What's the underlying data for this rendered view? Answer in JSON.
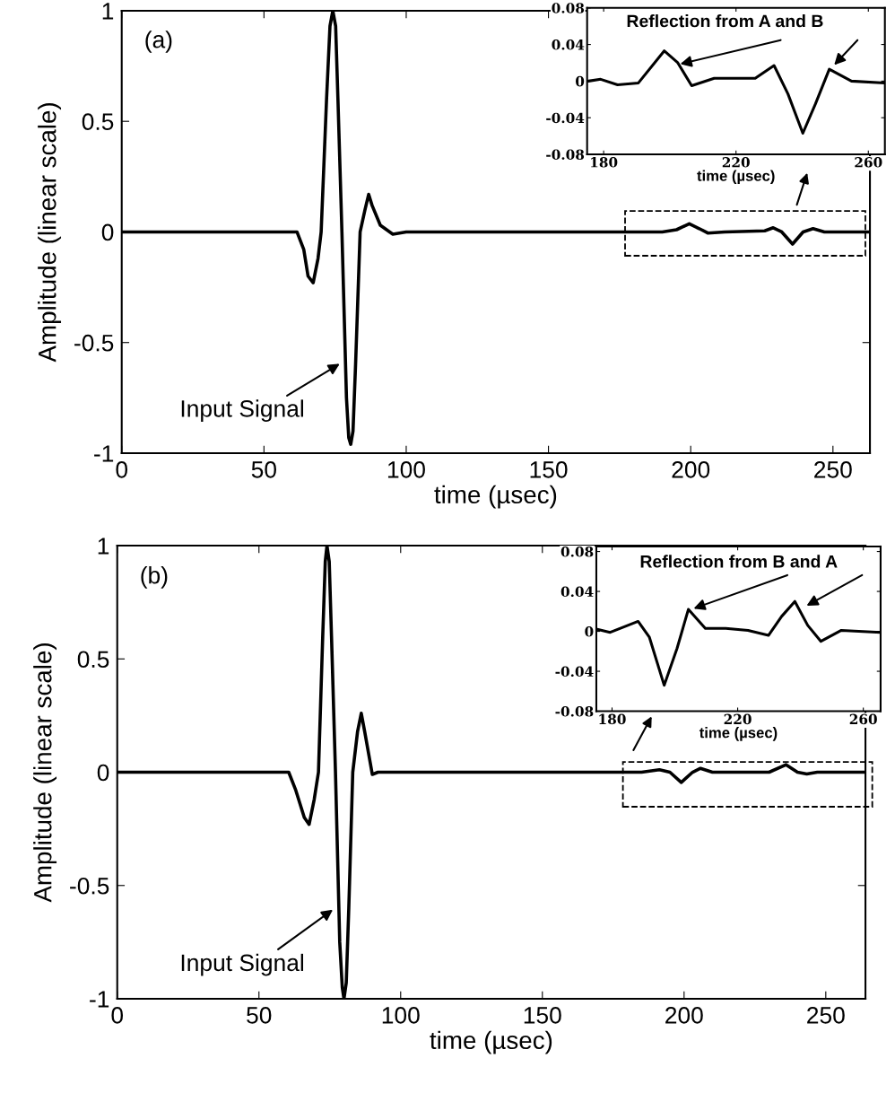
{
  "chart_data": [
    {
      "type": "line",
      "xlabel": "time (µsec)",
      "ylabel": "Amplitude (linear scale)",
      "xlim": [
        0,
        263
      ],
      "ylim": [
        -1,
        1
      ],
      "xticks": [
        0,
        50,
        100,
        150,
        200,
        250
      ],
      "yticks": [
        -1,
        -0.5,
        0,
        0.5,
        1
      ],
      "annotations": [
        "(a)",
        {
          "text": "Input Signal",
          "x": 77.4,
          "y": -0.59
        }
      ],
      "series": [
        {
          "color": "#000000",
          "x": [
            0,
            61.6,
            64,
            65.5,
            67.3,
            69,
            70.1,
            72,
            73.2,
            74.2,
            75.2,
            76,
            77.4,
            79,
            79.8,
            80.5,
            81.3,
            82.2,
            83.8,
            85.5,
            86.8,
            88,
            90.9,
            95.3,
            100,
            150,
            190,
            195,
            199.5,
            203,
            206,
            212,
            226,
            229,
            232,
            235.8,
            239.5,
            243,
            247,
            263
          ],
          "values": [
            0,
            0,
            -0.08,
            -0.2,
            -0.23,
            -0.12,
            0,
            0.6,
            0.93,
            1.0,
            0.93,
            0.6,
            0,
            -0.75,
            -0.93,
            -0.96,
            -0.9,
            -0.6,
            0,
            0.1,
            0.17,
            0.12,
            0.03,
            -0.01,
            0,
            0,
            0,
            0.01,
            0.037,
            0.015,
            -0.005,
            0,
            0.005,
            0.019,
            0,
            -0.055,
            0,
            0.015,
            0,
            0
          ]
        }
      ]
    },
    {
      "type": "line",
      "xlabel": "time (µsec)",
      "xlim": [
        175,
        265
      ],
      "ylim": [
        -0.08,
        0.08
      ],
      "xticks": [
        180,
        220,
        260
      ],
      "yticks": [
        -0.08,
        -0.04,
        0,
        0.04,
        0.08
      ],
      "annotations": [
        {
          "text": "Reflection from A and B",
          "x": 202.4,
          "y": 0.018
        }
      ],
      "series": [
        {
          "color": "#000000",
          "x": [
            175.4,
            179.1,
            184.2,
            190.5,
            198.3,
            202.4,
            206.6,
            213.4,
            225.8,
            231.5,
            235.7,
            240.2,
            244.0,
            248.2,
            254.9,
            265
          ],
          "values": [
            0,
            0.002,
            -0.004,
            -0.002,
            0.033,
            0.02,
            -0.005,
            0.003,
            0.003,
            0.017,
            -0.014,
            -0.057,
            -0.025,
            0.013,
            0,
            -0.002
          ]
        }
      ]
    },
    {
      "type": "line",
      "xlabel": "time (µsec)",
      "ylabel": "Amplitude (linear scale)",
      "xlim": [
        0,
        264
      ],
      "ylim": [
        -1,
        1
      ],
      "xticks": [
        0,
        50,
        100,
        150,
        200,
        250
      ],
      "yticks": [
        -1,
        -0.5,
        0,
        0.5,
        1
      ],
      "annotations": [
        "(b)",
        {
          "text": "Input Signal",
          "x": 76.8,
          "y": -0.6
        }
      ],
      "series": [
        {
          "color": "#000000",
          "x": [
            0,
            60.5,
            63,
            66,
            67.7,
            69.5,
            71,
            72.5,
            73.4,
            74,
            74.8,
            75.6,
            77,
            78.5,
            79.4,
            80,
            80.8,
            81.7,
            83.1,
            84.8,
            86.1,
            87.3,
            90,
            92,
            150,
            185,
            191.3,
            195,
            199,
            203,
            205.8,
            210,
            230,
            236,
            240,
            243.3,
            247,
            264
          ],
          "values": [
            0,
            0,
            -0.08,
            -0.2,
            -0.23,
            -0.12,
            0,
            0.6,
            0.93,
            1.0,
            0.93,
            0.6,
            0,
            -0.75,
            -0.95,
            -1.0,
            -0.93,
            -0.6,
            0,
            0.18,
            0.26,
            0.18,
            -0.01,
            0,
            0,
            0,
            0.011,
            0,
            -0.045,
            0,
            0.017,
            0,
            0,
            0.033,
            0,
            -0.008,
            0,
            0
          ]
        }
      ]
    },
    {
      "type": "line",
      "xlabel": "time (µsec)",
      "xlim": [
        175,
        265.5
      ],
      "ylim": [
        -0.08,
        0.085
      ],
      "xticks": [
        180,
        220,
        260
      ],
      "yticks": [
        -0.08,
        -0.04,
        0,
        0.04,
        0.08
      ],
      "annotations": [
        {
          "text": "Reflection from B and A",
          "x": 205.2,
          "y": 0.022
        }
      ],
      "series": [
        {
          "color": "#000000",
          "x": [
            175.3,
            179.4,
            188.3,
            191.9,
            196.6,
            200.7,
            204.3,
            209.7,
            216.2,
            223.3,
            229.8,
            234.0,
            238.2,
            242.3,
            246.5,
            253,
            265.5
          ],
          "values": [
            0.002,
            -0.001,
            0.01,
            -0.006,
            -0.054,
            -0.017,
            0.022,
            0.003,
            0.003,
            0.001,
            -0.004,
            0.015,
            0.03,
            0.006,
            -0.01,
            0.001,
            -0.001
          ]
        }
      ]
    }
  ]
}
